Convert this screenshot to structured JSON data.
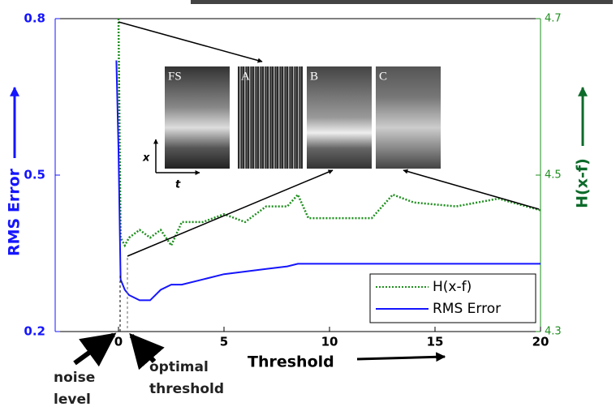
{
  "chart_data": {
    "type": "line",
    "x": [
      -0.1,
      0,
      0.1,
      0.3,
      0.5,
      1,
      1.5,
      2,
      2.5,
      3,
      4,
      5,
      6,
      7,
      8,
      8.5,
      9,
      10,
      12,
      13,
      14,
      16,
      18,
      20
    ],
    "series": [
      {
        "name": "H(x-f)",
        "color": "#1f8f1f",
        "axis": "y2",
        "style": "dotted",
        "values": [
          null,
          4.7,
          4.42,
          4.41,
          4.42,
          4.43,
          4.42,
          4.43,
          4.41,
          4.44,
          4.44,
          4.45,
          4.44,
          4.46,
          4.46,
          4.475,
          4.445,
          4.445,
          4.445,
          4.475,
          4.465,
          4.46,
          4.47,
          4.455
        ]
      },
      {
        "name": "RMS Error",
        "color": "#1515ff",
        "style": "solid",
        "values": [
          0.72,
          0.55,
          0.3,
          0.28,
          0.27,
          0.26,
          0.26,
          0.28,
          0.29,
          0.29,
          0.3,
          0.31,
          0.315,
          0.32,
          0.325,
          0.33,
          0.33,
          0.33,
          0.33,
          0.33,
          0.33,
          0.33,
          0.33,
          0.33
        ]
      }
    ],
    "xlim": [
      -3,
      20
    ],
    "xticks": [
      0,
      5,
      10,
      15,
      20
    ],
    "ylim": [
      0.2,
      0.8
    ],
    "yticks": [
      0.2,
      0.5,
      0.8
    ],
    "y2lim": [
      4.3,
      4.7
    ],
    "y2ticks": [
      4.3,
      4.5,
      4.7
    ],
    "xlabel": "Threshold",
    "ylabel": "RMS Error",
    "y2label": "H(x-f)",
    "legend": "lower right",
    "inset_labels": [
      "FS",
      "A",
      "B",
      "C"
    ],
    "inset_axes": [
      "x",
      "t"
    ],
    "annotations": [
      {
        "lines": [
          "noise",
          "level"
        ]
      },
      {
        "lines": [
          "optimal",
          "threshold"
        ]
      }
    ]
  }
}
